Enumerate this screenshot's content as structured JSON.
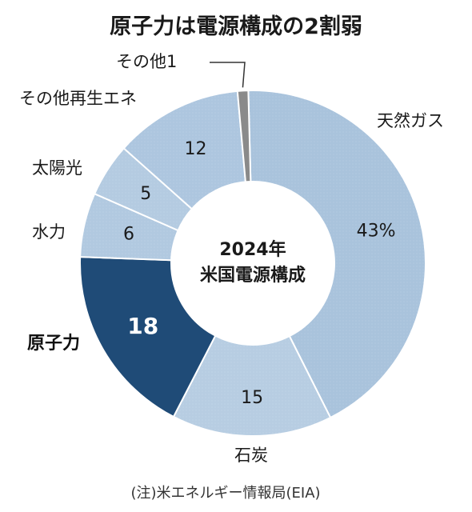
{
  "chart_data": {
    "type": "pie",
    "title": "原子力は電源構成の2割弱",
    "center_label": [
      "2024年",
      "米国電源構成"
    ],
    "source": "(注)米エネルギー情報局(EIA)",
    "slices": [
      {
        "label": "天然ガス",
        "value": 43,
        "value_text": "43%",
        "color": "#a9c3dc"
      },
      {
        "label": "石炭",
        "value": 15,
        "value_text": "15",
        "color": "#b7cde2"
      },
      {
        "label": "原子力",
        "value": 18,
        "value_text": "18",
        "color": "#1f4b77"
      },
      {
        "label": "水力",
        "value": 6,
        "value_text": "6",
        "color": "#b1c9e0"
      },
      {
        "label": "太陽光",
        "value": 5,
        "value_text": "5",
        "color": "#b4cbe1"
      },
      {
        "label": "その他再生エネ",
        "value": 12,
        "value_text": "12",
        "color": "#adc6df"
      },
      {
        "label": "その他",
        "value": 1,
        "value_text": "1",
        "color": "#8a8a8a"
      }
    ]
  }
}
